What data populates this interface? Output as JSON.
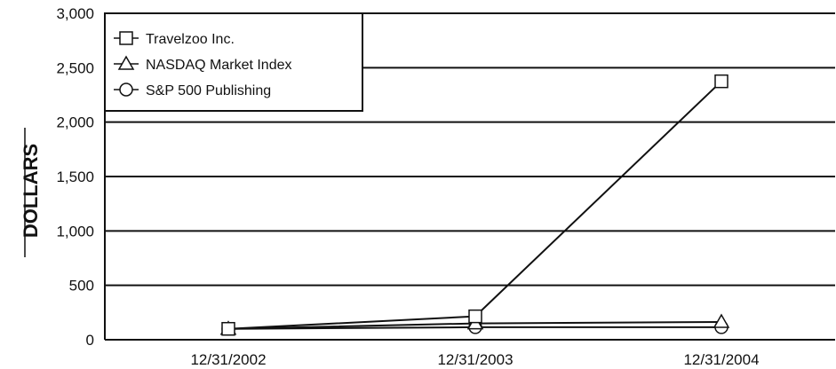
{
  "chart_data": {
    "type": "line",
    "title": "",
    "xlabel": "",
    "ylabel": "DOLLARS",
    "categories": [
      "12/31/2002",
      "12/31/2003",
      "12/31/2004"
    ],
    "ylim": [
      0,
      3000
    ],
    "yticks": [
      0,
      500,
      1000,
      1500,
      2000,
      2500,
      3000
    ],
    "ytick_labels": [
      "0",
      "500",
      "1,000",
      "1,500",
      "2,000",
      "2,500",
      "3,000"
    ],
    "grid": true,
    "legend_position": "top-left",
    "series": [
      {
        "name": "Travelzoo Inc.",
        "marker": "square",
        "values": [
          100,
          215,
          2375
        ]
      },
      {
        "name": "NASDAQ Market Index",
        "marker": "triangle",
        "values": [
          100,
          150,
          163
        ]
      },
      {
        "name": "S&P 500 Publishing",
        "marker": "circle",
        "values": [
          100,
          115,
          115
        ]
      }
    ],
    "colors": {
      "line": "#111111",
      "grid": "#111111",
      "background": "#ffffff"
    }
  }
}
